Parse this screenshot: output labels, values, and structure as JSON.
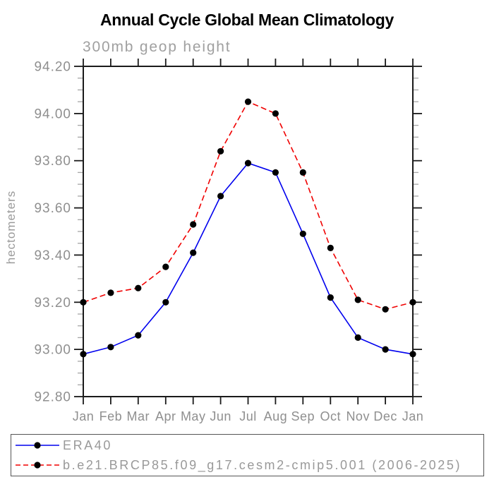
{
  "chart_data": {
    "type": "line",
    "title": "Annual Cycle Global Mean Climatology",
    "subtitle": "300mb geop height",
    "xlabel": "",
    "ylabel": "hectometers",
    "categories": [
      "Jan",
      "Feb",
      "Mar",
      "Apr",
      "May",
      "Jun",
      "Jul",
      "Aug",
      "Sep",
      "Oct",
      "Nov",
      "Dec",
      "Jan"
    ],
    "series": [
      {
        "name": "ERA40",
        "line_style": "solid",
        "color": "#0000ee",
        "marker": "filled-circle",
        "marker_color": "#000000",
        "values": [
          92.98,
          93.01,
          93.06,
          93.2,
          93.41,
          93.65,
          93.79,
          93.75,
          93.49,
          93.22,
          93.05,
          93.0,
          92.98
        ]
      },
      {
        "name": "b.e21.BRCP85.f09_g17.cesm2-cmip5.001 (2006-2025)",
        "line_style": "dashed",
        "color": "#f00000",
        "marker": "filled-circle",
        "marker_color": "#000000",
        "values": [
          93.2,
          93.24,
          93.26,
          93.35,
          93.53,
          93.84,
          94.05,
          94.0,
          93.75,
          93.43,
          93.21,
          93.17,
          93.2
        ]
      }
    ],
    "ylim": [
      92.8,
      94.2
    ],
    "ytick_step": 0.2,
    "ytick_minor_step": 0.05,
    "ytick_labels": [
      "92.80",
      "93.00",
      "93.20",
      "93.40",
      "93.60",
      "93.80",
      "94.00",
      "94.20"
    ],
    "grid": false,
    "legend_position": "bottom",
    "axis_color": "#1a1a1a",
    "minor_tick_color": "#a6a6a6",
    "tick_label_color": "#8f8f8f"
  }
}
